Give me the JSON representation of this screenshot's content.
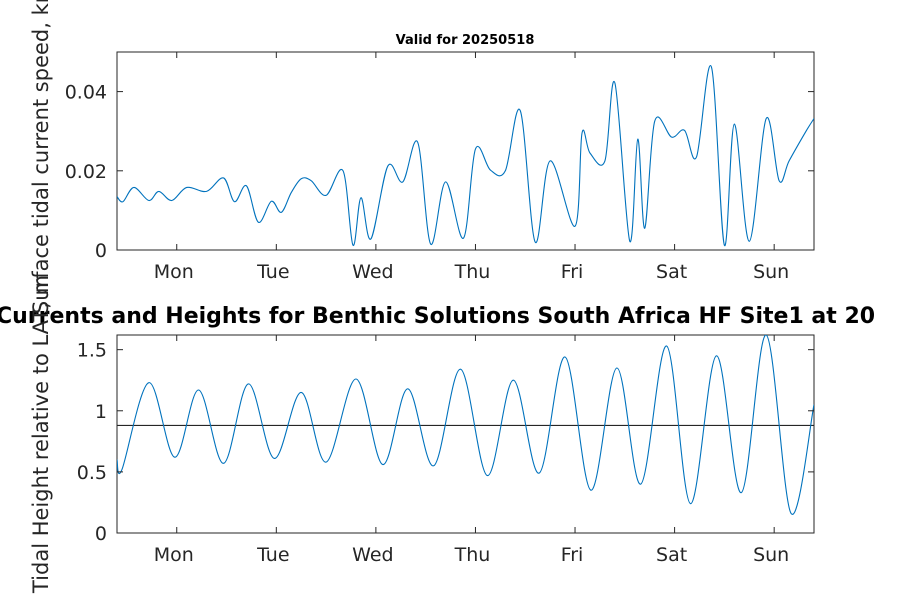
{
  "figure": {
    "subtitle": "Valid for 20250518",
    "main_title": "Currents and Heights for Benthic Solutions South Africa HF Site1 at 20"
  },
  "chart_data": [
    {
      "type": "line",
      "xlabel": "",
      "ylabel": "Surface tidal current speed, kn",
      "xlim": [
        0,
        7
      ],
      "ylim": [
        0,
        0.05
      ],
      "x_ticks": [
        0.6,
        1.6,
        2.6,
        3.6,
        4.6,
        5.6,
        6.6
      ],
      "x_tick_labels": [
        "Mon",
        "Tue",
        "Wed",
        "Thu",
        "Fri",
        "Sat",
        "Sun"
      ],
      "y_ticks": [
        0,
        0.02,
        0.04
      ],
      "y_tick_labels": [
        "0",
        "0.02",
        "0.04"
      ],
      "series_color": "#0072BD",
      "series": [
        {
          "x": [
            0,
            0.06,
            0.17,
            0.32,
            0.42,
            0.55,
            0.7,
            0.9,
            1.07,
            1.18,
            1.3,
            1.42,
            1.55,
            1.65,
            1.75,
            1.85,
            1.95,
            2.1,
            2.27,
            2.37,
            2.45,
            2.55,
            2.72,
            2.87,
            3.02,
            3.15,
            3.3,
            3.48,
            3.6,
            3.75,
            3.9,
            4.05,
            4.2,
            4.35,
            4.6,
            4.67,
            4.75,
            4.9,
            5.0,
            5.15,
            5.23,
            5.3,
            5.4,
            5.57,
            5.7,
            5.82,
            5.97,
            6.1,
            6.2,
            6.35,
            6.52,
            6.65,
            6.75,
            6.92,
            7
          ],
          "y": [
            0.0135,
            0.0122,
            0.0158,
            0.0125,
            0.0148,
            0.0125,
            0.0158,
            0.0148,
            0.0182,
            0.0122,
            0.0162,
            0.007,
            0.0123,
            0.0095,
            0.0145,
            0.018,
            0.0175,
            0.0138,
            0.02,
            0.0012,
            0.0132,
            0.0028,
            0.0212,
            0.0172,
            0.0272,
            0.0015,
            0.0172,
            0.003,
            0.0255,
            0.0202,
            0.02,
            0.0352,
            0.002,
            0.0225,
            0.006,
            0.0295,
            0.0245,
            0.0225,
            0.0422,
            0.0022,
            0.028,
            0.0055,
            0.0325,
            0.0285,
            0.0302,
            0.0235,
            0.0462,
            0.0012,
            0.0318,
            0.0022,
            0.0332,
            0.0175,
            0.0225,
            0.03,
            0.0332
          ]
        }
      ]
    },
    {
      "type": "line",
      "xlabel": "",
      "ylabel": "Tidal Height relative to LAT, m",
      "xlim": [
        0,
        7
      ],
      "ylim": [
        0,
        1.62
      ],
      "x_ticks": [
        0.6,
        1.6,
        2.6,
        3.6,
        4.6,
        5.6,
        6.6
      ],
      "x_tick_labels": [
        "Mon",
        "Tue",
        "Wed",
        "Thu",
        "Fri",
        "Sat",
        "Sun"
      ],
      "y_ticks": [
        0,
        0.5,
        1,
        1.5
      ],
      "y_tick_labels": [
        "0",
        "0.5",
        "1",
        "1.5"
      ],
      "series_color": "#0072BD",
      "reference_line": 0.88,
      "reference_color": "#262626",
      "series": [
        {
          "x": [
            0,
            0.05,
            0.32,
            0.58,
            0.82,
            1.07,
            1.32,
            1.58,
            1.85,
            2.1,
            2.4,
            2.67,
            2.92,
            3.18,
            3.45,
            3.72,
            3.98,
            4.24,
            4.5,
            4.76,
            5.02,
            5.26,
            5.52,
            5.76,
            6.02,
            6.27,
            6.52,
            6.77,
            7
          ],
          "y": [
            0.6,
            0.52,
            1.23,
            0.62,
            1.17,
            0.57,
            1.22,
            0.61,
            1.15,
            0.58,
            1.26,
            0.56,
            1.18,
            0.55,
            1.34,
            0.47,
            1.25,
            0.49,
            1.44,
            0.35,
            1.35,
            0.4,
            1.53,
            0.24,
            1.45,
            0.33,
            1.62,
            0.16,
            1.05
          ]
        }
      ]
    }
  ]
}
